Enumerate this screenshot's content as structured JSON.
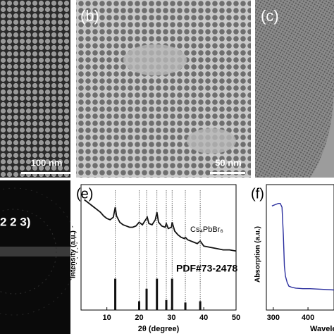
{
  "panels": {
    "a": {
      "scale_bar": "100 nm"
    },
    "b": {
      "label": "(b)",
      "scale_bar": "50 nm"
    },
    "c": {
      "label": "(c)"
    },
    "d": {
      "annotation": "2 2 3)"
    }
  },
  "chart_data": [
    {
      "type": "line",
      "label": "(e)",
      "xlabel": "2θ (degree)",
      "ylabel": "Intensity (a.u.)",
      "xlim": [
        2,
        50
      ],
      "xticks": [
        10,
        20,
        30,
        40,
        50
      ],
      "ylim": [
        0,
        100
      ],
      "series": [
        {
          "name": "Cs₄PbBr₆",
          "color": "#111111",
          "x": [
            3,
            4,
            5,
            6,
            7,
            8,
            9,
            10,
            11,
            12,
            12.6,
            13,
            14,
            15,
            16,
            17,
            18,
            19,
            20,
            21,
            22,
            22.5,
            23,
            24,
            25,
            25.5,
            26,
            27,
            28,
            28.4,
            29,
            30,
            30.2,
            31,
            32,
            33,
            34,
            34.3,
            35,
            36,
            37,
            38,
            38.9,
            40,
            42,
            44,
            46,
            48,
            50
          ],
          "values": [
            88,
            86,
            84,
            82,
            80,
            78,
            75,
            73,
            72,
            74,
            82,
            75,
            70,
            68,
            67,
            66,
            66,
            67,
            70,
            68,
            72,
            74,
            69,
            68,
            72,
            78,
            70,
            67,
            66,
            69,
            65,
            66,
            70,
            63,
            60,
            58,
            57,
            58,
            56,
            55,
            54,
            53,
            55,
            51,
            50,
            49,
            48,
            48,
            47
          ]
        },
        {
          "name": "PDF#73-2478",
          "color": "#111111",
          "style": "stick",
          "x": [
            12.6,
            20,
            22.3,
            25.5,
            28.4,
            30.2,
            34.3,
            38.9
          ],
          "values": [
            25,
            7,
            17,
            25,
            8,
            25,
            6,
            7
          ]
        }
      ]
    },
    {
      "type": "line",
      "label": "(f)",
      "xlabel": "Wavelength (nm)",
      "ylabel": "Absorption (a.u.)",
      "xlim": [
        280,
        475
      ],
      "xticks": [
        300,
        400
      ],
      "ylim": [
        0,
        100
      ],
      "series": [
        {
          "color": "#2b2f9e",
          "x": [
            296,
            305,
            315,
            320,
            325,
            329,
            332,
            335,
            340,
            345,
            355,
            365,
            385,
            406,
            440,
            475
          ],
          "values": [
            83,
            84,
            85,
            85,
            82,
            60,
            35,
            27,
            22,
            19,
            18,
            17.5,
            17,
            17,
            16.5,
            16
          ]
        }
      ]
    }
  ]
}
